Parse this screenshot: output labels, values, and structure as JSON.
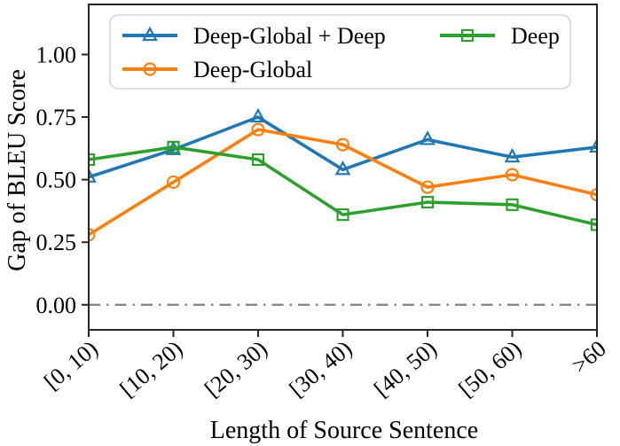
{
  "chart_data": {
    "type": "line",
    "title": "",
    "xlabel": "Length of Source Sentence",
    "ylabel": "Gap of BLEU Score",
    "categories": [
      "[0, 10)",
      "[10, 20)",
      "[20, 30)",
      "[30, 40)",
      "[40, 50)",
      "[50, 60)",
      ">60"
    ],
    "series": [
      {
        "name": "Deep-Global + Deep",
        "color": "#1f77b4",
        "marker": "triangle",
        "values": [
          0.51,
          0.62,
          0.75,
          0.54,
          0.66,
          0.59,
          0.63
        ]
      },
      {
        "name": "Deep-Global",
        "color": "#ff7f0e",
        "marker": "circle",
        "values": [
          0.28,
          0.49,
          0.7,
          0.64,
          0.47,
          0.52,
          0.44
        ]
      },
      {
        "name": "Deep",
        "color": "#2ca02c",
        "marker": "square",
        "values": [
          0.58,
          0.63,
          0.58,
          0.36,
          0.41,
          0.4,
          0.32
        ]
      }
    ],
    "yticks": [
      0.0,
      0.25,
      0.5,
      0.75,
      1.0
    ],
    "ytick_labels": [
      "0.00",
      "0.25",
      "0.50",
      "0.75",
      "1.00"
    ],
    "ylim": [
      -0.1,
      1.2
    ],
    "grid": false,
    "legend_position": "upper-left",
    "reference_line": {
      "y": 0.0,
      "style": "dash-dot",
      "color": "#808080"
    },
    "frame_color": "#262626",
    "background": "#ffffff"
  }
}
